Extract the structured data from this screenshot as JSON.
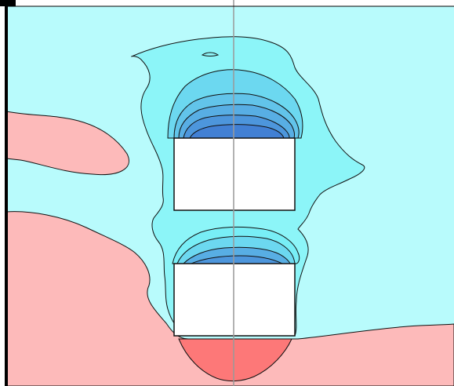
{
  "colors": {
    "background": "#ffffff",
    "cyan_light": "#b8fbfc",
    "cyan": "#8cf5f8",
    "cyan_mid": "#78eef6",
    "blue_1": "#6cd8f0",
    "blue_2": "#62c4ea",
    "blue_3": "#58aee4",
    "blue_4": "#4d96dc",
    "blue_5": "#4280d4",
    "pink": "#fdbaba",
    "red": "#fd7878",
    "obstacle": "#ffffff",
    "contour_line": "#111111",
    "axis_frame": "#000000",
    "centerline": "#999999"
  }
}
